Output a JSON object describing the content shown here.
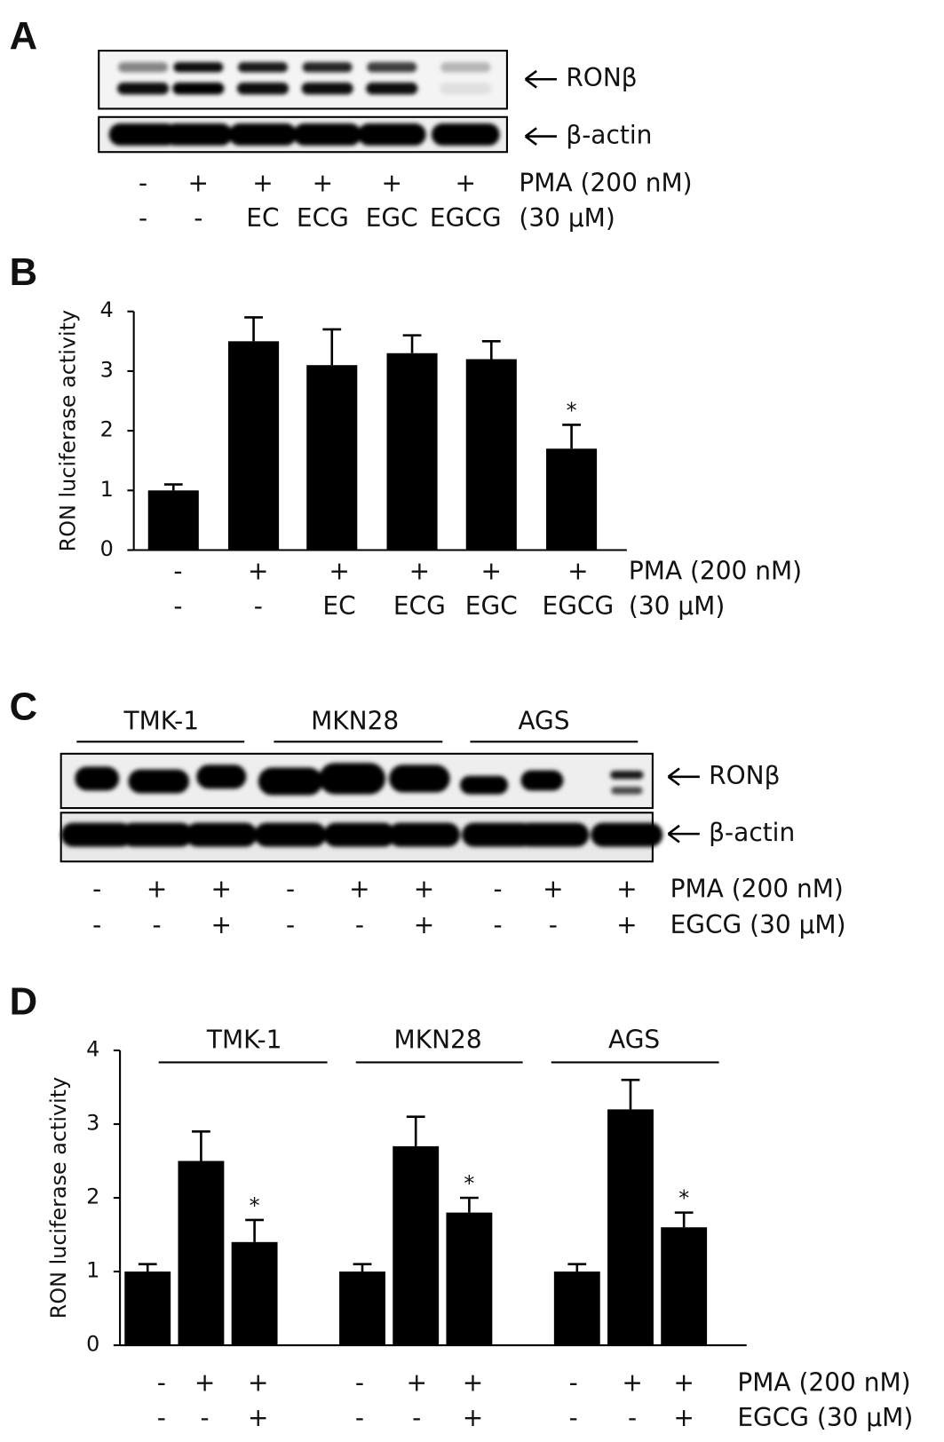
{
  "panel_labels": [
    "A",
    "B",
    "C",
    "D"
  ],
  "blot_a": {
    "bands": [
      "RONβ",
      "β-actin"
    ],
    "conditions": {
      "rows": [
        [
          "-",
          "+",
          "+",
          "+",
          "+",
          "+"
        ],
        [
          "-",
          "-",
          "EC",
          "ECG",
          "EGC",
          "EGCG"
        ]
      ],
      "labels": [
        "PMA (200 nM)",
        "(30 µM)"
      ]
    }
  },
  "blot_c": {
    "groups": [
      "TMK-1",
      "MKN28",
      "AGS"
    ],
    "bands": [
      "RONβ",
      "β-actin"
    ],
    "conditions": {
      "rows": [
        [
          "-",
          "+",
          "+",
          "-",
          "+",
          "+",
          "-",
          "+",
          "+"
        ],
        [
          "-",
          "-",
          "+",
          "-",
          "-",
          "+",
          "-",
          "-",
          "+"
        ]
      ],
      "labels": [
        "PMA (200 nM)",
        "EGCG (30 µM)"
      ]
    }
  },
  "chart_data": [
    {
      "type": "bar",
      "ylabel": "RON luciferase activity",
      "values": [
        1,
        3.5,
        3.1,
        3.3,
        3.2,
        1.7
      ],
      "errors": [
        0.1,
        0.4,
        0.6,
        0.3,
        0.3,
        0.4
      ],
      "significance": [
        null,
        null,
        null,
        null,
        null,
        "*"
      ],
      "color": "#000000",
      "ylim": [
        0,
        4
      ],
      "yticks": [
        0,
        1,
        2,
        3,
        4
      ],
      "conditions": {
        "rows": [
          [
            "-",
            "+",
            "+",
            "+",
            "+",
            "+"
          ],
          [
            "-",
            "-",
            "EC",
            "ECG",
            "EGC",
            "EGCG"
          ]
        ],
        "labels": [
          "PMA (200 nM)",
          "(30 µM)"
        ]
      }
    },
    {
      "type": "bar",
      "ylabel": "RON luciferase activity",
      "groups": [
        "TMK-1",
        "MKN28",
        "AGS"
      ],
      "values": [
        1,
        2.5,
        1.4,
        1,
        2.7,
        1.8,
        1,
        3.2,
        1.6
      ],
      "errors": [
        0.1,
        0.4,
        0.3,
        0.1,
        0.4,
        0.2,
        0.1,
        0.4,
        0.2
      ],
      "significance": [
        null,
        null,
        "*",
        null,
        null,
        "*",
        null,
        null,
        "*"
      ],
      "color": "#000000",
      "ylim": [
        0,
        4
      ],
      "yticks": [
        0,
        1,
        2,
        3,
        4
      ],
      "conditions": {
        "rows": [
          [
            "-",
            "+",
            "+",
            "-",
            "+",
            "+",
            "-",
            "+",
            "+"
          ],
          [
            "-",
            "-",
            "+",
            "-",
            "-",
            "+",
            "-",
            "-",
            "+"
          ]
        ],
        "labels": [
          "PMA (200 nM)",
          "EGCG (30 µM)"
        ]
      }
    }
  ]
}
